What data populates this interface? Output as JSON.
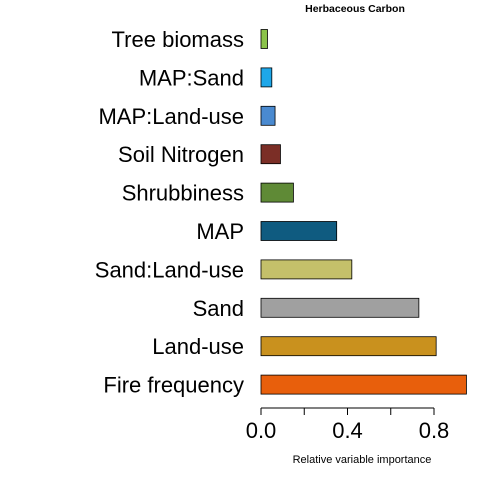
{
  "chart_data": {
    "type": "bar",
    "orientation": "horizontal",
    "title": "Herbaceous Carbon",
    "xlabel": "Relative variable importance",
    "ylabel": "",
    "xlim": [
      0,
      0.95
    ],
    "x_ticks": [
      0.0,
      0.2,
      0.4,
      0.6,
      0.8
    ],
    "x_tick_labels": [
      "0.0",
      "",
      "0.4",
      "",
      "0.8"
    ],
    "categories": [
      "Tree biomass",
      "MAP:Sand",
      "MAP:Land-use",
      "Soil Nitrogen",
      "Shrubbiness",
      "MAP",
      "Sand:Land-use",
      "Sand",
      "Land-use",
      "Fire frequency"
    ],
    "values": [
      0.03,
      0.05,
      0.065,
      0.09,
      0.15,
      0.35,
      0.42,
      0.73,
      0.81,
      0.95
    ],
    "colors": [
      "#8bc34a",
      "#1ea7e9",
      "#4a8ad0",
      "#7b2e26",
      "#5f8a36",
      "#0f5b80",
      "#c4c06a",
      "#a0a0a0",
      "#c9911e",
      "#e85f0c"
    ],
    "grid": false,
    "legend": "none"
  }
}
